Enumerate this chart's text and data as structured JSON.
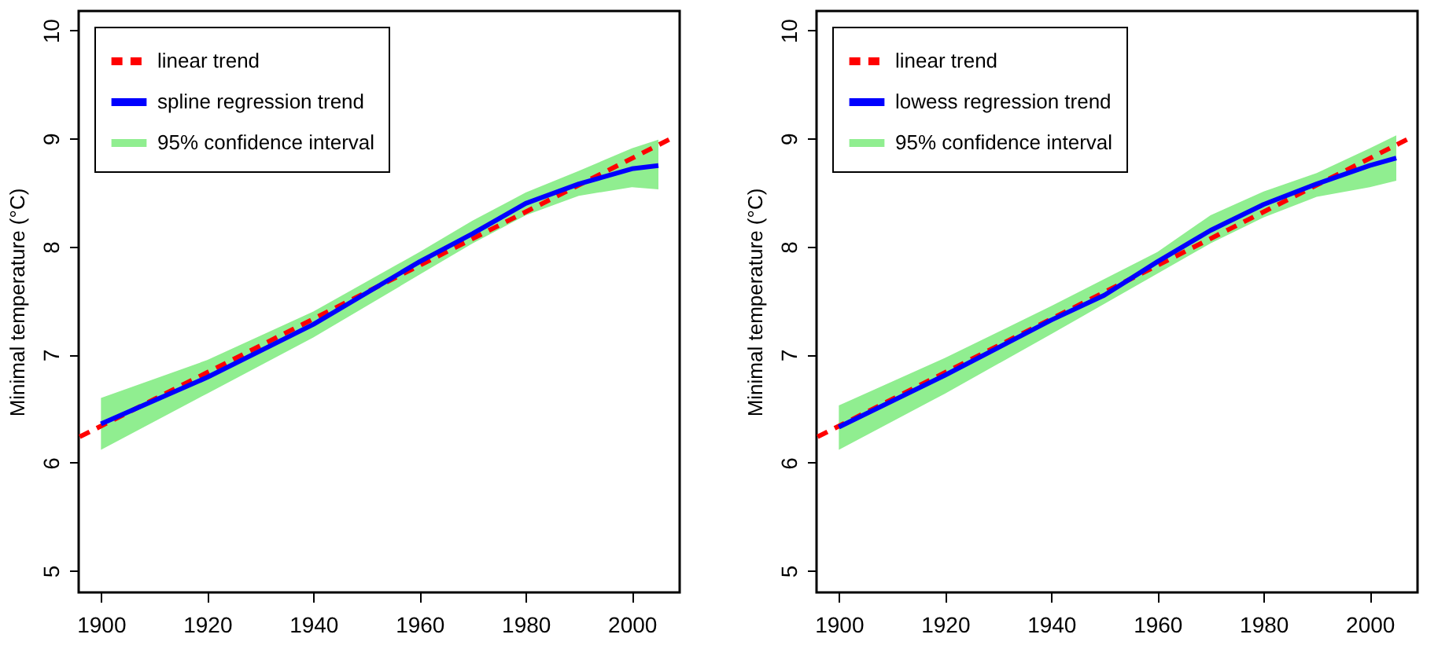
{
  "chart_data": [
    {
      "type": "line",
      "ylabel": "Minimal temperature (°C)",
      "xlim": [
        1895.8,
        2009
      ],
      "ylim": [
        4.8,
        10.18
      ],
      "xticks": [
        1900,
        1920,
        1940,
        1960,
        1980,
        2000
      ],
      "yticks": [
        5,
        6,
        7,
        8,
        9,
        10
      ],
      "grid": false,
      "legend": "top left",
      "series": [
        {
          "name": "linear trend",
          "color": "#ff0000",
          "line_style": "dashed",
          "x": [
            1896,
            2007
          ],
          "values": [
            6.24,
            8.99
          ]
        },
        {
          "name": "spline regression trend",
          "color": "#0000ff",
          "line_style": "solid",
          "x": [
            1900,
            1920,
            1940,
            1960,
            1970,
            1980,
            1990,
            2000,
            2005
          ],
          "values": [
            6.36,
            6.79,
            7.28,
            7.86,
            8.12,
            8.4,
            8.58,
            8.72,
            8.75
          ]
        },
        {
          "name": "95% confidence interval",
          "type": "area",
          "color": "#90ee90",
          "x": [
            1900,
            1920,
            1940,
            1960,
            1970,
            1980,
            1990,
            2000,
            2005
          ],
          "values": [
            null,
            null,
            null,
            null,
            null,
            null,
            null,
            null,
            null
          ],
          "lower": [
            6.12,
            6.64,
            7.16,
            7.74,
            8.03,
            8.29,
            8.47,
            8.55,
            8.53
          ],
          "upper": [
            6.6,
            6.95,
            7.4,
            7.95,
            8.24,
            8.5,
            8.7,
            8.91,
            8.99
          ]
        }
      ]
    },
    {
      "type": "line",
      "ylabel": "Minimal temperature (°C)",
      "xlim": [
        1895.8,
        2009
      ],
      "ylim": [
        4.8,
        10.18
      ],
      "xticks": [
        1900,
        1920,
        1940,
        1960,
        1980,
        2000
      ],
      "yticks": [
        5,
        6,
        7,
        8,
        9,
        10
      ],
      "grid": false,
      "legend": "top left",
      "series": [
        {
          "name": "linear trend",
          "color": "#ff0000",
          "line_style": "dashed",
          "x": [
            1896,
            2007
          ],
          "values": [
            6.24,
            8.99
          ]
        },
        {
          "name": "lowess regression trend",
          "color": "#0000ff",
          "line_style": "solid",
          "x": [
            1900,
            1920,
            1940,
            1950,
            1960,
            1970,
            1980,
            1990,
            2000,
            2005
          ],
          "values": [
            6.33,
            6.81,
            7.32,
            7.55,
            7.86,
            8.15,
            8.39,
            8.58,
            8.75,
            8.82
          ]
        },
        {
          "name": "95% confidence interval",
          "type": "area",
          "color": "#90ee90",
          "x": [
            1900,
            1920,
            1940,
            1960,
            1970,
            1980,
            1990,
            2000,
            2005
          ],
          "values": [
            null,
            null,
            null,
            null,
            null,
            null,
            null,
            null,
            null
          ],
          "lower": [
            6.12,
            6.64,
            7.19,
            7.75,
            8.03,
            8.27,
            8.46,
            8.55,
            8.61
          ],
          "upper": [
            6.53,
            6.97,
            7.45,
            7.95,
            8.29,
            8.51,
            8.68,
            8.91,
            9.03
          ]
        }
      ]
    }
  ]
}
